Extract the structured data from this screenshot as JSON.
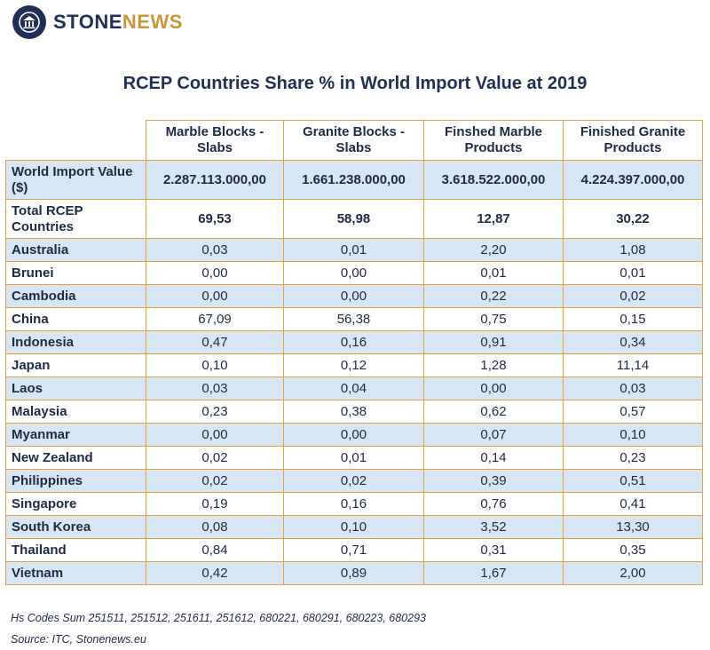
{
  "brand": {
    "name_part1": "STONE",
    "name_part2": "NEWS",
    "logo_icon": "temple-icon",
    "navy": "#1f2f55",
    "gold": "#c9963a"
  },
  "title": "RCEP Countries Share % in World Import Value at 2019",
  "chart_data": {
    "type": "table",
    "title": "RCEP Countries Share % in World Import Value at 2019",
    "columns": [
      "",
      "Marble Blocks - Slabs",
      "Granite Blocks - Slabs",
      "Finshed Marble Products",
      "Finished Granite Products"
    ],
    "rows": [
      {
        "label": "World Import Value ($)",
        "values": [
          "2.287.113.000,00",
          "1.661.238.000,00",
          "3.618.522.000,00",
          "4.224.397.000,00"
        ]
      },
      {
        "label": "Total RCEP Countries",
        "values": [
          "69,53",
          "58,98",
          "12,87",
          "30,22"
        ]
      },
      {
        "label": "Australia",
        "values": [
          "0,03",
          "0,01",
          "2,20",
          "1,08"
        ]
      },
      {
        "label": "Brunei",
        "values": [
          "0,00",
          "0,00",
          "0,01",
          "0,01"
        ]
      },
      {
        "label": "Cambodia",
        "values": [
          "0,00",
          "0,00",
          "0,22",
          "0,02"
        ]
      },
      {
        "label": "China",
        "values": [
          "67,09",
          "56,38",
          "0,75",
          "0,15"
        ]
      },
      {
        "label": "Indonesia",
        "values": [
          "0,47",
          "0,16",
          "0,91",
          "0,34"
        ]
      },
      {
        "label": "Japan",
        "values": [
          "0,10",
          "0,12",
          "1,28",
          "11,14"
        ]
      },
      {
        "label": "Laos",
        "values": [
          "0,03",
          "0,04",
          "0,00",
          "0,03"
        ]
      },
      {
        "label": "Malaysia",
        "values": [
          "0,23",
          "0,38",
          "0,62",
          "0,57"
        ]
      },
      {
        "label": "Myanmar",
        "values": [
          "0,00",
          "0,00",
          "0,07",
          "0,10"
        ]
      },
      {
        "label": "New Zealand",
        "values": [
          "0,02",
          "0,01",
          "0,14",
          "0,23"
        ]
      },
      {
        "label": "Philippines",
        "values": [
          "0,02",
          "0,02",
          "0,39",
          "0,51"
        ]
      },
      {
        "label": "Singapore",
        "values": [
          "0,19",
          "0,16",
          "0,76",
          "0,41"
        ]
      },
      {
        "label": "South Korea",
        "values": [
          "0,08",
          "0,10",
          "3,52",
          "13,30"
        ]
      },
      {
        "label": "Thailand",
        "values": [
          "0,84",
          "0,71",
          "0,31",
          "0,35"
        ]
      },
      {
        "label": "Vietnam",
        "values": [
          "0,42",
          "0,89",
          "1,67",
          "2,00"
        ]
      }
    ],
    "row_colors": {
      "blue": "#d6e6f5",
      "white": "#ffffff",
      "border": "#e3a23f"
    }
  },
  "footnotes": {
    "hs_codes": "Hs Codes Sum 251511, 251512, 251611, 251612, 680221, 680291, 680223, 680293",
    "source": "Source: ITC, Stonenews.eu"
  }
}
